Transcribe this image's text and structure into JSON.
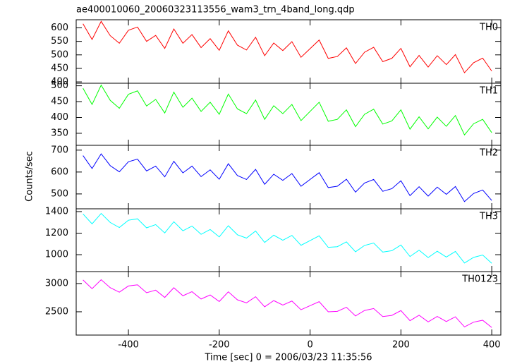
{
  "chart_data": [
    {
      "type": "line",
      "title": "ae400010060_20060323113556_wam3_trn_4band_long.qdp",
      "x": [
        -500,
        -480,
        -460,
        -440,
        -420,
        -400,
        -380,
        -360,
        -340,
        -320,
        -300,
        -280,
        -260,
        -240,
        -220,
        -200,
        -180,
        -160,
        -140,
        -120,
        -100,
        -80,
        -60,
        -40,
        -20,
        0,
        20,
        40,
        60,
        80,
        100,
        120,
        140,
        160,
        180,
        200,
        220,
        240,
        260,
        280,
        300,
        320,
        340,
        360,
        380,
        400
      ],
      "series": [
        {
          "name": "TH0",
          "color": "#ff0000",
          "values": [
            615,
            557,
            624,
            571,
            543,
            591,
            603,
            550,
            572,
            524,
            596,
            543,
            575,
            527,
            560,
            517,
            589,
            536,
            518,
            565,
            497,
            544,
            516,
            549,
            491,
            523,
            555,
            487,
            494,
            526,
            468,
            510,
            528,
            475,
            487,
            524,
            456,
            498,
            455,
            497,
            464,
            501,
            434,
            471,
            488,
            440
          ]
        }
      ],
      "xlim": [
        -515,
        420
      ],
      "xticks": [
        -400,
        -200,
        0,
        200,
        400
      ],
      "ylim": [
        395,
        630
      ],
      "yticks": [
        400,
        450,
        500,
        550,
        600
      ]
    },
    {
      "type": "line",
      "x": [
        -500,
        -480,
        -460,
        -440,
        -420,
        -400,
        -380,
        -360,
        -340,
        -320,
        -300,
        -280,
        -260,
        -240,
        -220,
        -200,
        -180,
        -160,
        -140,
        -120,
        -100,
        -80,
        -60,
        -40,
        -20,
        0,
        20,
        40,
        60,
        80,
        100,
        120,
        140,
        160,
        180,
        200,
        220,
        240,
        260,
        280,
        300,
        320,
        340,
        360,
        380,
        400
      ],
      "series": [
        {
          "name": "TH1",
          "color": "#00ff00",
          "values": [
            492,
            441,
            502,
            454,
            429,
            473,
            484,
            436,
            457,
            414,
            480,
            432,
            461,
            419,
            448,
            410,
            474,
            427,
            412,
            455,
            394,
            437,
            412,
            441,
            390,
            419,
            448,
            388,
            394,
            424,
            371,
            410,
            426,
            379,
            389,
            424,
            363,
            402,
            364,
            401,
            372,
            406,
            345,
            380,
            394,
            352
          ]
        }
      ],
      "xlim": [
        -515,
        420
      ],
      "xticks": [
        -400,
        -200,
        0,
        200,
        400
      ],
      "ylim": [
        312,
        508
      ],
      "yticks": [
        350,
        400,
        450,
        500
      ]
    },
    {
      "type": "line",
      "y_label": "Counts/sec",
      "x": [
        -500,
        -480,
        -460,
        -440,
        -420,
        -400,
        -380,
        -360,
        -340,
        -320,
        -300,
        -280,
        -260,
        -240,
        -220,
        -200,
        -180,
        -160,
        -140,
        -120,
        -100,
        -80,
        -60,
        -40,
        -20,
        0,
        20,
        40,
        60,
        80,
        100,
        120,
        140,
        160,
        180,
        200,
        220,
        240,
        260,
        280,
        300,
        320,
        340,
        360,
        380,
        400
      ],
      "series": [
        {
          "name": "TH2",
          "color": "#0000ff",
          "values": [
            675,
            616,
            683,
            629,
            601,
            647,
            659,
            605,
            627,
            578,
            649,
            596,
            627,
            579,
            610,
            567,
            638,
            584,
            566,
            612,
            544,
            590,
            562,
            593,
            535,
            566,
            597,
            529,
            535,
            567,
            508,
            550,
            566,
            512,
            524,
            560,
            492,
            533,
            490,
            531,
            498,
            534,
            465,
            502,
            518,
            470
          ]
        }
      ],
      "xlim": [
        -515,
        420
      ],
      "xticks": [
        -400,
        -200,
        0,
        200,
        400
      ],
      "ylim": [
        432,
        722
      ],
      "yticks": [
        500,
        600,
        700
      ]
    },
    {
      "type": "line",
      "x": [
        -500,
        -480,
        -460,
        -440,
        -420,
        -400,
        -380,
        -360,
        -340,
        -320,
        -300,
        -280,
        -260,
        -240,
        -220,
        -200,
        -180,
        -160,
        -140,
        -120,
        -100,
        -80,
        -60,
        -40,
        -20,
        0,
        20,
        40,
        60,
        80,
        100,
        120,
        140,
        160,
        180,
        200,
        220,
        240,
        260,
        280,
        300,
        320,
        340,
        360,
        380,
        400
      ],
      "series": [
        {
          "name": "TH3",
          "color": "#00ffff",
          "values": [
            1378,
            1286,
            1383,
            1299,
            1252,
            1320,
            1333,
            1249,
            1279,
            1202,
            1306,
            1222,
            1266,
            1189,
            1234,
            1165,
            1269,
            1185,
            1154,
            1220,
            1114,
            1181,
            1134,
            1179,
            1087,
            1131,
            1175,
            1068,
            1074,
            1119,
            1027,
            1086,
            1108,
            1024,
            1037,
            1090,
            983,
            1042,
            973,
            1032,
            978,
            1030,
            923,
            975,
            997,
            920
          ]
        }
      ],
      "xlim": [
        -515,
        420
      ],
      "xticks": [
        -400,
        -200,
        0,
        200,
        400
      ],
      "ylim": [
        843,
        1426
      ],
      "yticks": [
        1000,
        1200,
        1400
      ]
    },
    {
      "type": "line",
      "x_label": "Time [sec] 0 = 2006/03/23 11:35:56",
      "x": [
        -500,
        -480,
        -460,
        -440,
        -420,
        -400,
        -380,
        -360,
        -340,
        -320,
        -300,
        -280,
        -260,
        -240,
        -220,
        -200,
        -180,
        -160,
        -140,
        -120,
        -100,
        -80,
        -60,
        -40,
        -20,
        0,
        20,
        40,
        60,
        80,
        100,
        120,
        140,
        160,
        180,
        200,
        220,
        240,
        260,
        280,
        300,
        320,
        340,
        360,
        380,
        400
      ],
      "series": [
        {
          "name": "TH0123",
          "color": "#ff00ff",
          "values": [
            3063,
            2909,
            3068,
            2926,
            2847,
            2957,
            2978,
            2837,
            2883,
            2754,
            2926,
            2784,
            2856,
            2726,
            2798,
            2682,
            2854,
            2712,
            2658,
            2767,
            2588,
            2698,
            2619,
            2690,
            2536,
            2608,
            2679,
            2500,
            2508,
            2580,
            2426,
            2523,
            2557,
            2415,
            2436,
            2521,
            2342,
            2439,
            2321,
            2418,
            2327,
            2411,
            2232,
            2316,
            2350,
            2221
          ]
        }
      ],
      "xlim": [
        -515,
        420
      ],
      "xticks": [
        -400,
        -200,
        0,
        200,
        400
      ],
      "ylim": [
        2087,
        3212
      ],
      "yticks": [
        2500,
        3000
      ]
    }
  ]
}
